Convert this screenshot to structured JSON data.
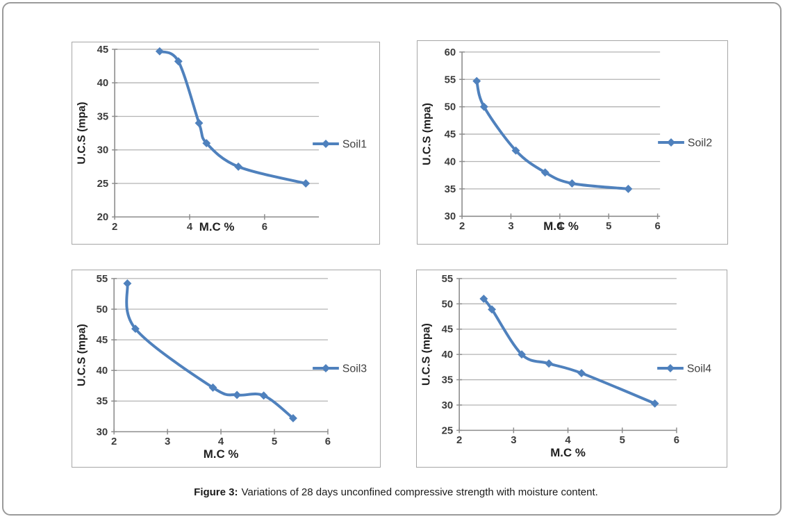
{
  "caption": {
    "label": "Figure 3:",
    "text": "Variations of 28 days unconfined compressive strength with moisture content."
  },
  "colors": {
    "series": "#4f81bd",
    "grid": "#b3b3b3",
    "axis": "#8c8c8c",
    "chart_border": "#a6a6a6",
    "page_border": "#9a9a9a",
    "tick_text": "#3b3b3b",
    "axis_title_text": "#1f1f1f",
    "legend_text": "#404040"
  },
  "chart_data": [
    {
      "type": "line",
      "name": "Soil1",
      "xlabel": "M.C %",
      "ylabel": "U.C.S (mpa)",
      "x": [
        3.2,
        3.7,
        4.25,
        4.45,
        5.3,
        7.1
      ],
      "y": [
        44.7,
        43.2,
        34,
        31,
        27.5,
        25
      ],
      "xlim": [
        2,
        7.45
      ],
      "ylim": [
        20,
        45
      ],
      "xticks": [
        2,
        4,
        6
      ],
      "yticks": [
        20,
        25,
        30,
        35,
        40,
        45
      ],
      "grid": "horizontal",
      "legend_position": "right-inside",
      "xlabel_placement": "inline-with-ticks"
    },
    {
      "type": "line",
      "name": "Soil2",
      "xlabel": "M.C %",
      "ylabel": "U.C.S (mpa)",
      "x": [
        2.3,
        2.45,
        3.1,
        3.7,
        4.25,
        5.4
      ],
      "y": [
        54.7,
        50,
        42,
        38,
        36,
        35
      ],
      "xlim": [
        2,
        6.05
      ],
      "ylim": [
        30,
        60
      ],
      "xticks": [
        2,
        3,
        4,
        5,
        6
      ],
      "yticks": [
        30,
        35,
        40,
        45,
        50,
        55,
        60
      ],
      "grid": "horizontal",
      "legend_position": "right-inside",
      "xlabel_placement": "inline-with-ticks"
    },
    {
      "type": "line",
      "name": "Soil3",
      "xlabel": "M.C %",
      "ylabel": "U.C.S (mpa)",
      "x": [
        2.25,
        2.4,
        3.85,
        4.3,
        4.8,
        5.35
      ],
      "y": [
        54.2,
        46.8,
        37.2,
        36,
        35.9,
        32.2
      ],
      "xlim": [
        2,
        6
      ],
      "ylim": [
        30,
        55
      ],
      "xticks": [
        2,
        3,
        4,
        5,
        6
      ],
      "yticks": [
        30,
        35,
        40,
        45,
        50,
        55
      ],
      "grid": "horizontal",
      "legend_position": "right-inside",
      "xlabel_placement": "below-ticks"
    },
    {
      "type": "line",
      "name": "Soil4",
      "xlabel": "M.C %",
      "ylabel": "U.C.S (mpa)",
      "x": [
        2.45,
        2.6,
        3.15,
        3.65,
        4.25,
        5.6
      ],
      "y": [
        51,
        48.9,
        40,
        38.2,
        36.3,
        30.3
      ],
      "xlim": [
        2,
        6
      ],
      "ylim": [
        25,
        55
      ],
      "xticks": [
        2,
        3,
        4,
        5,
        6
      ],
      "yticks": [
        25,
        30,
        35,
        40,
        45,
        50,
        55
      ],
      "grid": "horizontal",
      "legend_position": "right-inside",
      "xlabel_placement": "below-ticks"
    }
  ]
}
